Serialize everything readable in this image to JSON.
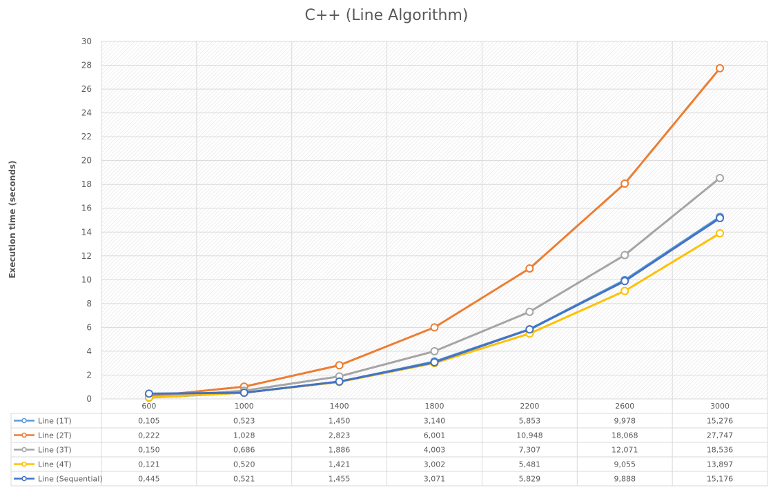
{
  "chart_data": {
    "type": "line",
    "title": "C++ (Line Algorithm)",
    "xlabel": "",
    "ylabel": "Execution time (seconds)",
    "categories": [
      "600",
      "1000",
      "1400",
      "1800",
      "2200",
      "2600",
      "3000"
    ],
    "ylim": [
      0,
      30
    ],
    "yticks": [
      "0",
      "2",
      "4",
      "6",
      "8",
      "10",
      "12",
      "14",
      "16",
      "18",
      "20",
      "22",
      "24",
      "26",
      "28",
      "30"
    ],
    "grid": true,
    "legend": "data table below chart",
    "series": [
      {
        "name": "Line (1T)",
        "color": "#5B9BD5",
        "values": [
          0.105,
          0.523,
          1.45,
          3.14,
          5.853,
          9.978,
          15.276
        ],
        "labels": [
          "0,105",
          "0,523",
          "1,450",
          "3,140",
          "5,853",
          "9,978",
          "15,276"
        ]
      },
      {
        "name": "Line (2T)",
        "color": "#ED7D31",
        "values": [
          0.222,
          1.028,
          2.823,
          6.001,
          10.948,
          18.068,
          27.747
        ],
        "labels": [
          "0,222",
          "1,028",
          "2,823",
          "6,001",
          "10,948",
          "18,068",
          "27,747"
        ]
      },
      {
        "name": "Line (3T)",
        "color": "#A5A5A5",
        "values": [
          0.15,
          0.686,
          1.886,
          4.003,
          7.307,
          12.071,
          18.536
        ],
        "labels": [
          "0,150",
          "0,686",
          "1,886",
          "4,003",
          "7,307",
          "12,071",
          "18,536"
        ]
      },
      {
        "name": "Line (4T)",
        "color": "#FFC000",
        "values": [
          0.121,
          0.52,
          1.421,
          3.002,
          5.481,
          9.055,
          13.897
        ],
        "labels": [
          "0,121",
          "0,520",
          "1,421",
          "3,002",
          "5,481",
          "9,055",
          "13,897"
        ]
      },
      {
        "name": "Line (Sequential)",
        "color": "#4472C4",
        "values": [
          0.445,
          0.521,
          1.455,
          3.071,
          5.829,
          9.888,
          15.176
        ],
        "labels": [
          "0,445",
          "0,521",
          "1,455",
          "3,071",
          "5,829",
          "9,888",
          "15,176"
        ]
      }
    ]
  }
}
